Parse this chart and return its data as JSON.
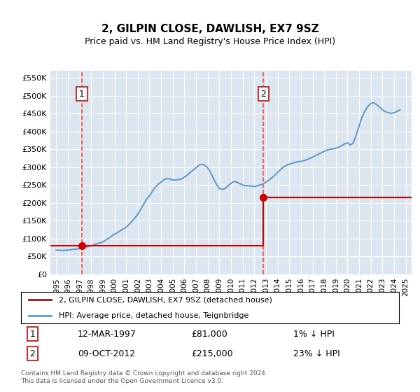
{
  "title": "2, GILPIN CLOSE, DAWLISH, EX7 9SZ",
  "subtitle": "Price paid vs. HM Land Registry's House Price Index (HPI)",
  "legend_line1": "2, GILPIN CLOSE, DAWLISH, EX7 9SZ (detached house)",
  "legend_line2": "HPI: Average price, detached house, Teignbridge",
  "footnote1": "Contains HM Land Registry data © Crown copyright and database right 2024.",
  "footnote2": "This data is licensed under the Open Government Licence v3.0.",
  "sale1_date": "12-MAR-1997",
  "sale1_price": 81000,
  "sale1_label": "1% ↓ HPI",
  "sale1_year": 1997.2,
  "sale2_date": "09-OCT-2012",
  "sale2_price": 215000,
  "sale2_label": "23% ↓ HPI",
  "sale2_year": 2012.78,
  "ylim": [
    0,
    570000
  ],
  "xlim": [
    1994.5,
    2025.5
  ],
  "background_color": "#dce6f1",
  "plot_bg_color": "#dce6f1",
  "red_line_color": "#cc0000",
  "blue_line_color": "#6699cc",
  "sale_marker_color": "#cc0000",
  "dashed_line_color": "#ff4444",
  "box_color": "#cc3333",
  "yticks": [
    0,
    50000,
    100000,
    150000,
    200000,
    250000,
    300000,
    350000,
    400000,
    450000,
    500000,
    550000
  ],
  "ytick_labels": [
    "£0",
    "£50K",
    "£100K",
    "£150K",
    "£200K",
    "£250K",
    "£300K",
    "£350K",
    "£400K",
    "£450K",
    "£500K",
    "£550K"
  ],
  "hpi_years": [
    1995.0,
    1995.25,
    1995.5,
    1995.75,
    1996.0,
    1996.25,
    1996.5,
    1996.75,
    1997.0,
    1997.25,
    1997.5,
    1997.75,
    1998.0,
    1998.25,
    1998.5,
    1998.75,
    1999.0,
    1999.25,
    1999.5,
    1999.75,
    2000.0,
    2000.25,
    2000.5,
    2000.75,
    2001.0,
    2001.25,
    2001.5,
    2001.75,
    2002.0,
    2002.25,
    2002.5,
    2002.75,
    2003.0,
    2003.25,
    2003.5,
    2003.75,
    2004.0,
    2004.25,
    2004.5,
    2004.75,
    2005.0,
    2005.25,
    2005.5,
    2005.75,
    2006.0,
    2006.25,
    2006.5,
    2006.75,
    2007.0,
    2007.25,
    2007.5,
    2007.75,
    2008.0,
    2008.25,
    2008.5,
    2008.75,
    2009.0,
    2009.25,
    2009.5,
    2009.75,
    2010.0,
    2010.25,
    2010.5,
    2010.75,
    2011.0,
    2011.25,
    2011.5,
    2011.75,
    2012.0,
    2012.25,
    2012.5,
    2012.75,
    2013.0,
    2013.25,
    2013.5,
    2013.75,
    2014.0,
    2014.25,
    2014.5,
    2014.75,
    2015.0,
    2015.25,
    2015.5,
    2015.75,
    2016.0,
    2016.25,
    2016.5,
    2016.75,
    2017.0,
    2017.25,
    2017.5,
    2017.75,
    2018.0,
    2018.25,
    2018.5,
    2018.75,
    2019.0,
    2019.25,
    2019.5,
    2019.75,
    2020.0,
    2020.25,
    2020.5,
    2020.75,
    2021.0,
    2021.25,
    2021.5,
    2021.75,
    2022.0,
    2022.25,
    2022.5,
    2022.75,
    2023.0,
    2023.25,
    2023.5,
    2023.75,
    2024.0,
    2024.25,
    2024.5
  ],
  "hpi_values": [
    68000,
    67500,
    67000,
    67500,
    68000,
    69000,
    70000,
    71000,
    72000,
    74000,
    76000,
    78000,
    80000,
    83000,
    86000,
    88000,
    91000,
    96000,
    101000,
    107000,
    112000,
    117000,
    122000,
    127000,
    132000,
    140000,
    148000,
    158000,
    168000,
    182000,
    196000,
    210000,
    220000,
    232000,
    244000,
    252000,
    258000,
    265000,
    268000,
    267000,
    264000,
    264000,
    265000,
    267000,
    272000,
    278000,
    285000,
    292000,
    298000,
    305000,
    308000,
    305000,
    298000,
    285000,
    268000,
    252000,
    240000,
    238000,
    240000,
    248000,
    255000,
    260000,
    258000,
    254000,
    250000,
    248000,
    248000,
    247000,
    246000,
    248000,
    250000,
    253000,
    258000,
    264000,
    270000,
    277000,
    285000,
    293000,
    300000,
    305000,
    308000,
    311000,
    313000,
    315000,
    316000,
    318000,
    321000,
    324000,
    328000,
    332000,
    336000,
    340000,
    344000,
    348000,
    350000,
    351000,
    353000,
    356000,
    360000,
    365000,
    368000,
    362000,
    368000,
    390000,
    415000,
    440000,
    458000,
    470000,
    478000,
    480000,
    475000,
    468000,
    460000,
    455000,
    452000,
    450000,
    452000,
    456000,
    460000
  ],
  "price_paid_years": [
    1997.2,
    2012.78
  ],
  "price_paid_values": [
    81000,
    215000
  ],
  "xtick_years": [
    1995,
    1996,
    1997,
    1998,
    1999,
    2000,
    2001,
    2002,
    2003,
    2004,
    2005,
    2006,
    2007,
    2008,
    2009,
    2010,
    2011,
    2012,
    2013,
    2014,
    2015,
    2016,
    2017,
    2018,
    2019,
    2020,
    2021,
    2022,
    2023,
    2024,
    2025
  ]
}
